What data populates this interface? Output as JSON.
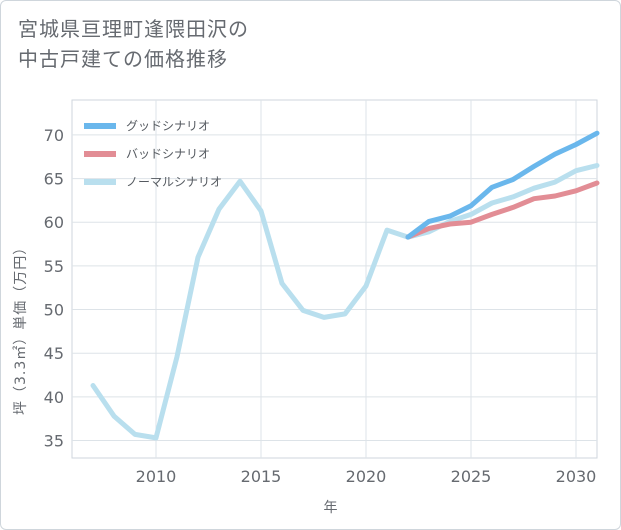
{
  "title": {
    "line1": "宮城県亘理町逢隈田沢の",
    "line2": "中古戸建ての価格推移"
  },
  "chart_data": {
    "type": "line",
    "title": "宮城県亘理町逢隈田沢の中古戸建ての価格推移",
    "xlabel": "年",
    "ylabel": "坪（3.3㎡）単価（万円）",
    "xlim": [
      2006,
      2031
    ],
    "ylim": [
      33,
      74
    ],
    "xticks": [
      2010,
      2015,
      2020,
      2025,
      2030
    ],
    "yticks": [
      35,
      40,
      45,
      50,
      55,
      60,
      65,
      70
    ],
    "grid": true,
    "legend_position": "top-left",
    "series": [
      {
        "name": "グッドシナリオ",
        "color": "#6ab7ec",
        "x": [
          2022,
          2023,
          2024,
          2025,
          2026,
          2027,
          2028,
          2029,
          2030,
          2031
        ],
        "y": [
          58.3,
          60.1,
          60.7,
          61.9,
          64.0,
          64.9,
          66.4,
          67.8,
          68.9,
          70.2
        ]
      },
      {
        "name": "バッドシナリオ",
        "color": "#e28d95",
        "x": [
          2022,
          2023,
          2024,
          2025,
          2026,
          2027,
          2028,
          2029,
          2030,
          2031
        ],
        "y": [
          58.3,
          59.3,
          59.8,
          60.0,
          60.9,
          61.7,
          62.7,
          63.0,
          63.6,
          64.5
        ]
      },
      {
        "name": "ノーマルシナリオ",
        "color": "#b9dfee",
        "x": [
          2007,
          2008,
          2009,
          2010,
          2011,
          2012,
          2013,
          2014,
          2015,
          2016,
          2017,
          2018,
          2019,
          2020,
          2021,
          2022,
          2023,
          2024,
          2025,
          2026,
          2027,
          2028,
          2029,
          2030,
          2031
        ],
        "y": [
          41.3,
          37.8,
          35.7,
          35.3,
          44.6,
          56.0,
          61.5,
          64.7,
          61.3,
          53.0,
          49.9,
          49.1,
          49.5,
          52.7,
          59.1,
          58.3,
          58.9,
          60.1,
          60.9,
          62.2,
          62.9,
          63.9,
          64.6,
          65.9,
          66.5
        ]
      }
    ]
  }
}
